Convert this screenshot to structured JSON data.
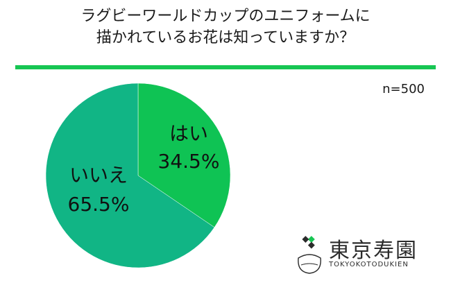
{
  "title": {
    "line1": "ラグビーワールドカップのユニフォームに",
    "line2": "描かれているお花は知っていますか？"
  },
  "sample_size": "n=500",
  "colors": {
    "accent": "#17c653",
    "yes": "#0fc354",
    "no": "#11b585",
    "ink": "#1a1a1a"
  },
  "chart_data": {
    "type": "pie",
    "title": "",
    "slices": [
      {
        "label": "はい",
        "value": 34.5,
        "value_label": "34.5%",
        "color": "#0fc354"
      },
      {
        "label": "いいえ",
        "value": 65.5,
        "value_label": "65.5%",
        "color": "#11b585"
      }
    ],
    "start": "top",
    "direction": "clockwise"
  },
  "logo": {
    "name": "東京寿園",
    "sub": "TOKYOKOTODUKIEN"
  }
}
